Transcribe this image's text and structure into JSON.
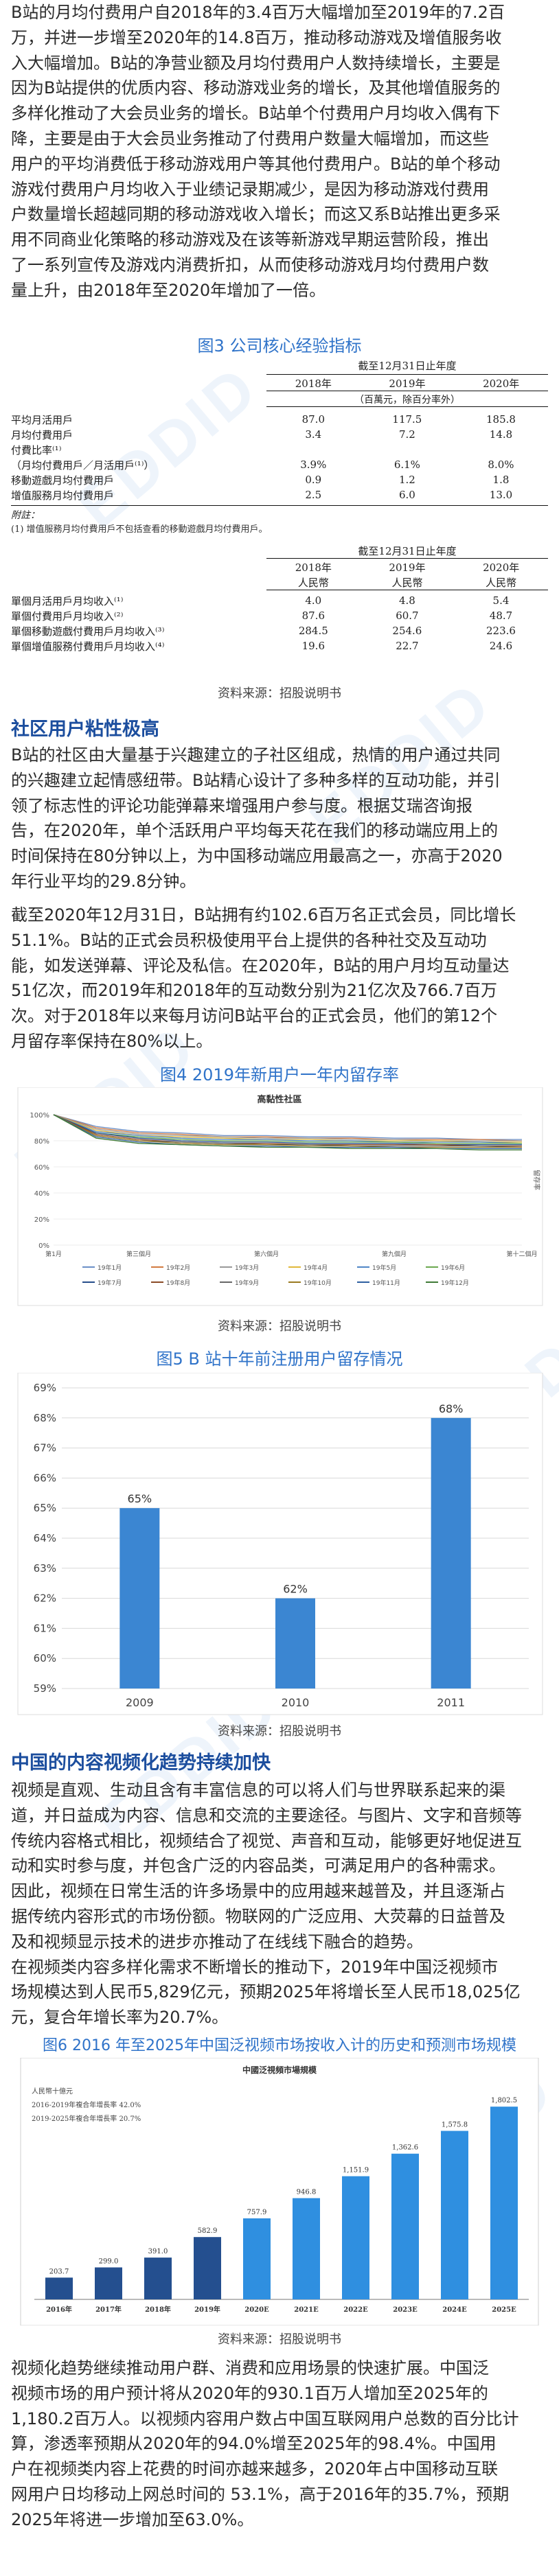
{
  "intro": {
    "lines": [
      "B站的月均付费用户自2018年的3.4百万大幅增加至2019年的7.2百",
      "万，并进一步增至2020年的14.8百万，推动移动游戏及增值服务收",
      "入大幅增加。B站的净营业额及月均付费用户人数持续增长，主要是",
      "因为B站提供的优质内容、移动游戏业务的增长，及其他增值服务的",
      "多样化推动了大会员业务的增长。B站单个付费用户月均收入偶有下",
      "降，主要是由于大会员业务推动了付费用户数量大幅增加，而这些",
      "用户的平均消费低于移动游戏用户等其他付费用户。B站的单个移动",
      "游戏付费用户月均收入于业绩记录期减少，是因为移动游戏付费用",
      "户数量增长超越同期的移动游戏收入增长；而这又系B站推出更多采",
      "用不同商业化策略的移动游戏及在该等新游戏早期运营阶段，推出",
      "了一系列宣传及游戏内消费折扣，从而使移动游戏月均付费用户数",
      "量上升，由2018年至2020年增加了一倍。"
    ]
  },
  "fig3": {
    "title": "图3  公司核心经验指标",
    "table1": {
      "header_top": "截至12月31日止年度",
      "years": [
        "2018年",
        "2019年",
        "2020年"
      ],
      "unit": "（百萬元，除百分率外）",
      "rows": [
        {
          "label": "平均月活用戶",
          "values": [
            "87.0",
            "117.5",
            "185.8"
          ]
        },
        {
          "label": "月均付費用戶",
          "values": [
            "3.4",
            "7.2",
            "14.8"
          ]
        },
        {
          "label": "付費比率⁽¹⁾",
          "values": [
            "",
            "",
            ""
          ]
        },
        {
          "label": "（月均付費用戶／月活用戶⁽¹⁾）",
          "values": [
            "3.9%",
            "6.1%",
            "8.0%"
          ]
        },
        {
          "label": "移動遊戲月均付費用戶",
          "values": [
            "0.9",
            "1.2",
            "1.8"
          ]
        },
        {
          "label": "增值服務月均付費用戶",
          "values": [
            "2.5",
            "6.0",
            "13.0"
          ]
        }
      ],
      "note_label": "附註：",
      "note_text": "(1)   增值服務月均付費用戶不包括查看的移動遊戲月均付費用戶。"
    },
    "table2": {
      "header_top": "截至12月31日止年度",
      "years": [
        "2018年",
        "2019年",
        "2020年"
      ],
      "currency": [
        "人民幣",
        "人民幣",
        "人民幣"
      ],
      "rows": [
        {
          "label": "單個月活用戶月均收入⁽¹⁾",
          "values": [
            "4.0",
            "4.8",
            "5.4"
          ]
        },
        {
          "label": "單個付費用戶月均收入⁽²⁾",
          "values": [
            "87.6",
            "60.7",
            "48.7"
          ]
        },
        {
          "label": "單個移動遊戲付費用戶月均收入⁽³⁾",
          "values": [
            "284.5",
            "254.6",
            "223.6"
          ]
        },
        {
          "label": "單個增值服務付費用戶月均收入⁽⁴⁾",
          "values": [
            "19.6",
            "22.7",
            "24.6"
          ]
        }
      ]
    },
    "source": "资料来源：招股说明书"
  },
  "section1": {
    "heading": "社区用户粘性极高",
    "para1": [
      "B站的社区由大量基于兴趣建立的子社区组成，热情的用户通过共同",
      "的兴趣建立起情感纽带。B站精心设计了多种多样的互动功能，并引",
      "领了标志性的评论功能弹幕来增强用户参与度。根据艾瑞咨询报",
      "告，在2020年，单个活跃用户平均每天花在我们的移动端应用上的",
      "时间保持在80分钟以上，为中国移动端应用最高之一，亦高于2020",
      "年行业平均的29.8分钟。"
    ],
    "para2": [
      "截至2020年12月31日，B站拥有约102.6百万名正式会员，同比增长",
      "51.1%。B站的正式会员积极使用平台上提供的各种社交及互动功",
      "能，如发送弹幕、评论及私信。在2020年，B站的用户月均互动量达",
      "51亿次，而2019年和2018年的互动数分别为21亿次及766.7百万",
      "次。对于2018年以来每月访问B站平台的正式会员，他们的第12个",
      "月留存率保持在80%以上。"
    ]
  },
  "fig4": {
    "title": "图4  2019年新用户一年内留存率",
    "source": "资料来源：招股说明书"
  },
  "fig5": {
    "title": "图5  B 站十年前注册用户留存情况",
    "source": "资料来源：招股说明书"
  },
  "section2": {
    "heading": "中国的内容视频化趋势持续加快",
    "para": [
      "视频是直观、生动且含有丰富信息的可以将人们与世界联系起来的渠",
      "道，并日益成为内容、信息和交流的主要途径。与图片、文字和音频等",
      "传统内容格式相比，视频结合了视觉、声音和互动，能够更好地促进互",
      "动和实时参与度，并包含广泛的内容品类，可满足用户的各种需求。",
      "因此，视频在日常生活的许多场景中的应用越来越普及，并且逐渐占",
      "据传统内容形式的市场份额。物联网的广泛应用、大荧幕的日益普及",
      "及和视频显示技术的进步亦推动了在线线下融合的趋势。",
      "在视频类内容多样化需求不断增长的推动下，2019年中国泛视频市",
      "场规模达到人民币5,829亿元，预期2025年将增长至人民币18,025亿",
      "元，复合年增长率为20.7%。"
    ]
  },
  "fig6": {
    "title": "图6  2016 年至2025年中国泛视频市场按收入计的历史和预测市场规模",
    "source": "资料来源：招股说明书"
  },
  "section3": {
    "para": [
      "视频化趋势继续推动用户群、消费和应用场景的快速扩展。中国泛",
      "视频市场的用户预计将从2020年的930.1百万人增加至2025年的",
      "1,180.2百万人。以视频内容用户数占中国互联网用户总数的百分比计",
      "算，渗透率预期从2020年的94.0%增至2025年的98.4%。中国用",
      "户在视频类内容上花费的时间亦越来越多，2020年占中国移动互联",
      "网用户日均移动上网总时间的      53.1%，高于2016年的35.7%，预期",
      "2025年将进一步增加至63.0%。"
    ]
  },
  "chart_data": [
    {
      "type": "line",
      "title": "高黏性社區",
      "x": [
        "第1月",
        "第2月",
        "第3月",
        "第4月",
        "第5月",
        "第6月",
        "第7月",
        "第8月",
        "第9月",
        "第10月",
        "第11月",
        "第12月"
      ],
      "x_tick_labels": [
        "第1月",
        "第三個月",
        "第六個月",
        "第九個月",
        "第十二個月"
      ],
      "ylim": [
        0,
        100
      ],
      "y_ticks": [
        "0%",
        "20%",
        "40%",
        "60%",
        "80%",
        "100%"
      ],
      "ylabel": "留存率",
      "legend": [
        "19年1月",
        "19年2月",
        "19年3月",
        "19年4月",
        "19年5月",
        "19年6月",
        "19年7月",
        "19年8月",
        "19年9月",
        "19年10月",
        "19年11月",
        "19年12月"
      ],
      "series_values": [
        [
          100,
          91,
          87,
          86,
          84,
          84,
          83,
          83,
          82,
          82,
          81,
          81
        ],
        [
          100,
          90,
          86,
          85,
          83,
          83,
          82,
          82,
          81,
          81,
          81,
          80
        ],
        [
          100,
          89,
          85,
          84,
          83,
          82,
          82,
          81,
          81,
          80,
          80,
          80
        ],
        [
          100,
          88,
          84,
          83,
          82,
          81,
          81,
          80,
          80,
          80,
          79,
          79
        ],
        [
          100,
          87,
          84,
          82,
          81,
          81,
          80,
          80,
          79,
          79,
          79,
          78
        ],
        [
          100,
          86,
          83,
          81,
          80,
          80,
          79,
          79,
          79,
          78,
          78,
          78
        ],
        [
          100,
          86,
          82,
          80,
          79,
          79,
          78,
          78,
          78,
          77,
          77,
          77
        ],
        [
          100,
          85,
          81,
          79,
          78,
          78,
          77,
          77,
          77,
          77,
          76,
          76
        ],
        [
          100,
          84,
          80,
          79,
          78,
          77,
          77,
          76,
          76,
          76,
          76,
          75
        ],
        [
          100,
          84,
          80,
          78,
          77,
          77,
          76,
          76,
          75,
          75,
          75,
          75
        ],
        [
          100,
          83,
          79,
          77,
          76,
          76,
          75,
          75,
          75,
          74,
          74,
          74
        ],
        [
          100,
          82,
          78,
          77,
          76,
          75,
          75,
          74,
          74,
          74,
          73,
          73
        ]
      ],
      "colors": [
        "#6a8fc7",
        "#d27a40",
        "#999999",
        "#e0b83a",
        "#4f86c6",
        "#6aa84f",
        "#254d8a",
        "#8a4a25",
        "#666666",
        "#9a7a20",
        "#2e5fa0",
        "#3f7a35"
      ]
    },
    {
      "type": "bar",
      "categories": [
        "2009",
        "2010",
        "2011"
      ],
      "values": [
        65,
        62,
        68
      ],
      "data_labels": [
        "65%",
        "62%",
        "68%"
      ],
      "ylim": [
        59,
        69
      ],
      "y_ticks": [
        "59%",
        "60%",
        "61%",
        "62%",
        "63%",
        "64%",
        "65%",
        "66%",
        "67%",
        "68%",
        "69%"
      ],
      "color": "#3b86d2"
    },
    {
      "type": "bar",
      "title": "中國泛視頻市場規模",
      "subtitle_lines": [
        "人民幣十億元",
        "2016-2019年複合年增長率 42.0%",
        "2019-2025年複合年增長率 20.7%"
      ],
      "categories": [
        "2016年",
        "2017年",
        "2018年",
        "2019年",
        "2020E",
        "2021E",
        "2022E",
        "2023E",
        "2024E",
        "2025E"
      ],
      "values": [
        203.7,
        299.0,
        391.0,
        582.9,
        757.9,
        946.8,
        1151.9,
        1362.6,
        1575.8,
        1802.5
      ],
      "data_labels": [
        "203.7",
        "299.0",
        "391.0",
        "582.9",
        "757.9",
        "946.8",
        "1,151.9",
        "1,362.6",
        "1,575.8",
        "1,802.5"
      ],
      "colors": [
        "#244f8f",
        "#244f8f",
        "#244f8f",
        "#244f8f",
        "#2f8fe0",
        "#2f8fe0",
        "#2f8fe0",
        "#2f8fe0",
        "#2f8fe0",
        "#2f8fe0"
      ]
    }
  ]
}
